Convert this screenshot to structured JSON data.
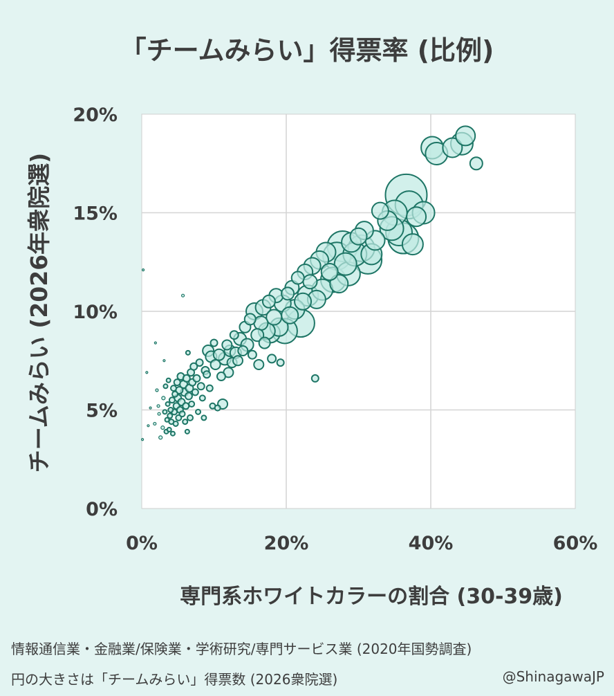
{
  "chart_data": {
    "type": "scatter",
    "title": "「チームみらい」得票率 (比例)",
    "xlabel": "専門系ホワイトカラーの割合 (30-39歳)",
    "ylabel": "チームみらい (2026年衆院選)",
    "xlim": [
      0,
      60
    ],
    "ylim": [
      0,
      20
    ],
    "x_ticks": [
      "0%",
      "20%",
      "40%",
      "60%"
    ],
    "y_ticks": [
      "0%",
      "5%",
      "10%",
      "15%",
      "20%"
    ],
    "grid": true,
    "size_encoding": "「チームみらい」得票数 (2026衆院選)",
    "points": [
      [
        0.1,
        3.5,
        1.5
      ],
      [
        0.2,
        12.1,
        1.5
      ],
      [
        0.7,
        6.9,
        1.5
      ],
      [
        0.9,
        4.2,
        1.5
      ],
      [
        1.2,
        5.1,
        1.5
      ],
      [
        1.8,
        4.3,
        2
      ],
      [
        1.9,
        8.4,
        1.5
      ],
      [
        2.1,
        6.0,
        2
      ],
      [
        2.3,
        5.2,
        2
      ],
      [
        2.4,
        4.8,
        2
      ],
      [
        2.6,
        3.6,
        2.5
      ],
      [
        2.9,
        4.1,
        2.5
      ],
      [
        3.0,
        5.6,
        2.5
      ],
      [
        3.1,
        7.5,
        1.5
      ],
      [
        3.2,
        4.9,
        3
      ],
      [
        3.3,
        6.2,
        3
      ],
      [
        3.4,
        3.9,
        3
      ],
      [
        3.5,
        4.5,
        3
      ],
      [
        3.6,
        5.3,
        3
      ],
      [
        3.7,
        6.5,
        3
      ],
      [
        3.8,
        4.0,
        3
      ],
      [
        3.9,
        4.7,
        3.5
      ],
      [
        4.0,
        5.0,
        3.5
      ],
      [
        4.1,
        4.4,
        3.5
      ],
      [
        4.2,
        5.5,
        4
      ],
      [
        4.3,
        3.8,
        3
      ],
      [
        4.4,
        6.1,
        4
      ],
      [
        4.5,
        4.9,
        4
      ],
      [
        4.6,
        5.8,
        4
      ],
      [
        4.7,
        4.3,
        3.5
      ],
      [
        4.8,
        5.2,
        4.5
      ],
      [
        4.9,
        6.4,
        4.5
      ],
      [
        5.0,
        5.6,
        5
      ],
      [
        5.1,
        4.6,
        4
      ],
      [
        5.2,
        6.0,
        5
      ],
      [
        5.3,
        5.0,
        4.5
      ],
      [
        5.4,
        6.7,
        5
      ],
      [
        5.5,
        5.4,
        5
      ],
      [
        5.6,
        4.8,
        4
      ],
      [
        5.7,
        10.8,
        2
      ],
      [
        5.8,
        6.3,
        5.5
      ],
      [
        5.9,
        5.9,
        5.5
      ],
      [
        6.0,
        4.4,
        3.5
      ],
      [
        6.1,
        5.2,
        4.5
      ],
      [
        6.2,
        6.6,
        5
      ],
      [
        6.3,
        3.9,
        3
      ],
      [
        6.4,
        7.9,
        3
      ],
      [
        6.5,
        5.7,
        5
      ],
      [
        6.6,
        6.1,
        5.5
      ],
      [
        6.7,
        4.6,
        4
      ],
      [
        6.8,
        6.9,
        5
      ],
      [
        6.9,
        5.3,
        4
      ],
      [
        7.0,
        6.4,
        5
      ],
      [
        7.2,
        7.2,
        5
      ],
      [
        7.4,
        5.9,
        4.5
      ],
      [
        7.6,
        6.6,
        5
      ],
      [
        7.8,
        4.9,
        3.5
      ],
      [
        8.0,
        7.4,
        5
      ],
      [
        8.2,
        6.2,
        5
      ],
      [
        8.4,
        5.6,
        4
      ],
      [
        8.6,
        4.6,
        3.5
      ],
      [
        8.8,
        7.0,
        5.5
      ],
      [
        9.0,
        6.8,
        5
      ],
      [
        9.2,
        8.0,
        8
      ],
      [
        9.4,
        6.1,
        4.5
      ],
      [
        9.6,
        7.7,
        8
      ],
      [
        9.8,
        5.2,
        4
      ],
      [
        10.0,
        8.4,
        5
      ],
      [
        10.2,
        7.3,
        7
      ],
      [
        10.5,
        5.1,
        4
      ],
      [
        10.7,
        7.8,
        8
      ],
      [
        11.0,
        6.7,
        6
      ],
      [
        11.2,
        5.3,
        7
      ],
      [
        11.5,
        7.6,
        9
      ],
      [
        11.8,
        8.3,
        7
      ],
      [
        12.0,
        6.9,
        7
      ],
      [
        12.2,
        8.0,
        8
      ],
      [
        12.5,
        7.4,
        7
      ],
      [
        12.8,
        8.8,
        6
      ],
      [
        13.0,
        7.9,
        8
      ],
      [
        13.3,
        7.5,
        7
      ],
      [
        13.6,
        8.6,
        9
      ],
      [
        14.0,
        8.0,
        7
      ],
      [
        14.3,
        9.2,
        8
      ],
      [
        14.6,
        8.3,
        9
      ],
      [
        15.0,
        9.6,
        8
      ],
      [
        15.3,
        7.8,
        6
      ],
      [
        15.6,
        10.0,
        12
      ],
      [
        16.0,
        8.8,
        9
      ],
      [
        16.2,
        7.3,
        7
      ],
      [
        16.5,
        9.4,
        10
      ],
      [
        16.8,
        10.2,
        11
      ],
      [
        17.0,
        8.4,
        8
      ],
      [
        17.3,
        9.0,
        12
      ],
      [
        17.6,
        10.5,
        9
      ],
      [
        17.8,
        8.9,
        14
      ],
      [
        18.0,
        7.6,
        6
      ],
      [
        18.3,
        9.7,
        11
      ],
      [
        18.6,
        10.8,
        10
      ],
      [
        19.0,
        9.2,
        13
      ],
      [
        19.2,
        7.4,
        5
      ],
      [
        19.5,
        10.4,
        12
      ],
      [
        19.8,
        9.0,
        18
      ],
      [
        20.2,
        10.9,
        9
      ],
      [
        20.5,
        9.8,
        12
      ],
      [
        20.8,
        11.2,
        10
      ],
      [
        21.2,
        10.1,
        14
      ],
      [
        21.6,
        11.7,
        9
      ],
      [
        22.0,
        9.4,
        20
      ],
      [
        22.3,
        10.5,
        12
      ],
      [
        22.6,
        12.0,
        11
      ],
      [
        23.0,
        10.8,
        15
      ],
      [
        23.3,
        11.5,
        10
      ],
      [
        23.6,
        12.3,
        12
      ],
      [
        24.0,
        6.6,
        5
      ],
      [
        24.2,
        10.6,
        13
      ],
      [
        24.6,
        12.6,
        13
      ],
      [
        25.0,
        11.1,
        15
      ],
      [
        25.5,
        13.0,
        14
      ],
      [
        26.0,
        12.0,
        12
      ],
      [
        26.5,
        11.6,
        18
      ],
      [
        27.0,
        12.8,
        20
      ],
      [
        27.3,
        11.4,
        13
      ],
      [
        27.8,
        13.3,
        22
      ],
      [
        28.2,
        12.4,
        16
      ],
      [
        28.6,
        11.9,
        17
      ],
      [
        29.0,
        13.5,
        14
      ],
      [
        29.5,
        12.9,
        17
      ],
      [
        30.0,
        13.8,
        12
      ],
      [
        30.4,
        13.2,
        19
      ],
      [
        30.8,
        14.1,
        13
      ],
      [
        31.3,
        12.6,
        20
      ],
      [
        31.8,
        12.9,
        15
      ],
      [
        32.3,
        13.6,
        14
      ],
      [
        33.0,
        15.1,
        12
      ],
      [
        34.0,
        14.6,
        14
      ],
      [
        34.6,
        14.2,
        17
      ],
      [
        35.0,
        15.0,
        18
      ],
      [
        35.6,
        14.0,
        19
      ],
      [
        36.2,
        13.7,
        22
      ],
      [
        36.6,
        15.9,
        30
      ],
      [
        37.0,
        15.4,
        20
      ],
      [
        37.5,
        13.4,
        15
      ],
      [
        38.0,
        14.8,
        14
      ],
      [
        39.0,
        15.0,
        16
      ],
      [
        40.2,
        18.3,
        16
      ],
      [
        40.8,
        18.0,
        16
      ],
      [
        43.0,
        18.3,
        14
      ],
      [
        44.3,
        18.5,
        16
      ],
      [
        44.8,
        18.9,
        14
      ],
      [
        46.3,
        17.5,
        9
      ]
    ]
  },
  "footnotes": {
    "line1": "情報通信業・金融業/保険業・学術研究/専門サービス業 (2020年国勢調査)",
    "line2": "円の大きさは「チームみらい」得票数 (2026衆院選)"
  },
  "credit": "@ShinagawaJP",
  "colors": {
    "background": "#e3f4f2",
    "plot_background": "#ffffff",
    "grid": "#d4d4d4",
    "marker_fill": "#bfe9e2",
    "marker_stroke": "#1d7565",
    "text": "#3d3d3d"
  }
}
